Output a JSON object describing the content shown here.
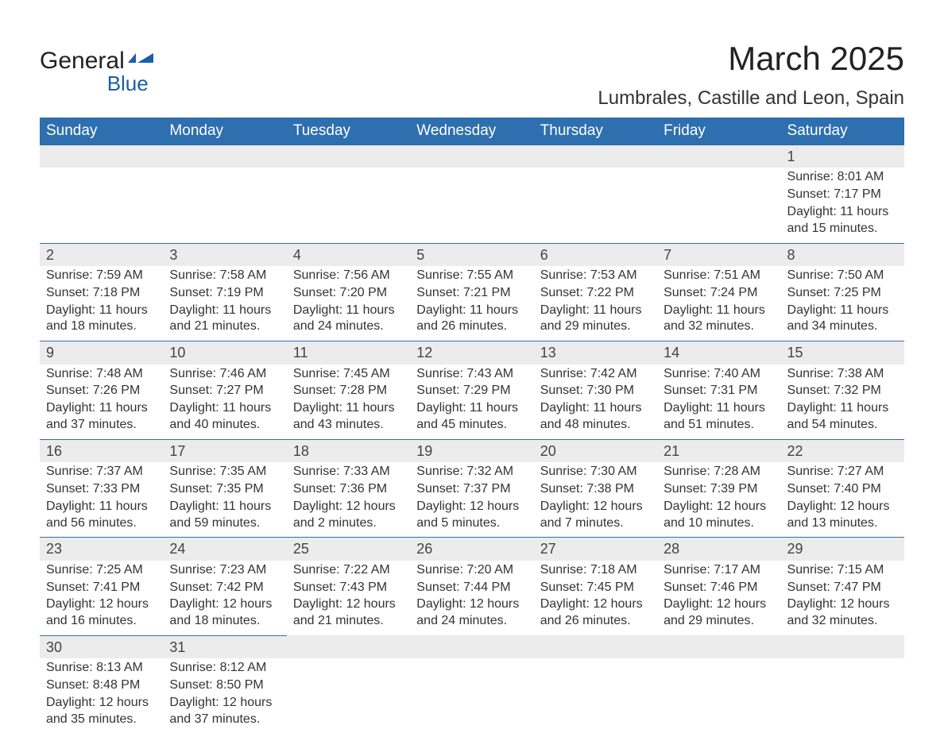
{
  "colors": {
    "header_bg": "#2e6faf",
    "header_text": "#ffffff",
    "daynum_bg": "#ececec",
    "daynum_border": "#2e6faf",
    "logo_shape": "#1a5fa8",
    "body_text": "#333333",
    "title_text": "#222222",
    "page_bg": "#ffffff"
  },
  "logo": {
    "line1": "General",
    "line2": "Blue"
  },
  "title": {
    "main": "March 2025",
    "sub": "Lumbrales, Castille and Leon, Spain"
  },
  "weekdays": [
    "Sunday",
    "Monday",
    "Tuesday",
    "Wednesday",
    "Thursday",
    "Friday",
    "Saturday"
  ],
  "field_labels": {
    "sunrise": "Sunrise:",
    "sunset": "Sunset:",
    "daylight": "Daylight:"
  },
  "grid": [
    [
      null,
      null,
      null,
      null,
      null,
      null,
      {
        "n": "1",
        "sunrise": "8:01 AM",
        "sunset": "7:17 PM",
        "daylight": "11 hours and 15 minutes."
      }
    ],
    [
      {
        "n": "2",
        "sunrise": "7:59 AM",
        "sunset": "7:18 PM",
        "daylight": "11 hours and 18 minutes."
      },
      {
        "n": "3",
        "sunrise": "7:58 AM",
        "sunset": "7:19 PM",
        "daylight": "11 hours and 21 minutes."
      },
      {
        "n": "4",
        "sunrise": "7:56 AM",
        "sunset": "7:20 PM",
        "daylight": "11 hours and 24 minutes."
      },
      {
        "n": "5",
        "sunrise": "7:55 AM",
        "sunset": "7:21 PM",
        "daylight": "11 hours and 26 minutes."
      },
      {
        "n": "6",
        "sunrise": "7:53 AM",
        "sunset": "7:22 PM",
        "daylight": "11 hours and 29 minutes."
      },
      {
        "n": "7",
        "sunrise": "7:51 AM",
        "sunset": "7:24 PM",
        "daylight": "11 hours and 32 minutes."
      },
      {
        "n": "8",
        "sunrise": "7:50 AM",
        "sunset": "7:25 PM",
        "daylight": "11 hours and 34 minutes."
      }
    ],
    [
      {
        "n": "9",
        "sunrise": "7:48 AM",
        "sunset": "7:26 PM",
        "daylight": "11 hours and 37 minutes."
      },
      {
        "n": "10",
        "sunrise": "7:46 AM",
        "sunset": "7:27 PM",
        "daylight": "11 hours and 40 minutes."
      },
      {
        "n": "11",
        "sunrise": "7:45 AM",
        "sunset": "7:28 PM",
        "daylight": "11 hours and 43 minutes."
      },
      {
        "n": "12",
        "sunrise": "7:43 AM",
        "sunset": "7:29 PM",
        "daylight": "11 hours and 45 minutes."
      },
      {
        "n": "13",
        "sunrise": "7:42 AM",
        "sunset": "7:30 PM",
        "daylight": "11 hours and 48 minutes."
      },
      {
        "n": "14",
        "sunrise": "7:40 AM",
        "sunset": "7:31 PM",
        "daylight": "11 hours and 51 minutes."
      },
      {
        "n": "15",
        "sunrise": "7:38 AM",
        "sunset": "7:32 PM",
        "daylight": "11 hours and 54 minutes."
      }
    ],
    [
      {
        "n": "16",
        "sunrise": "7:37 AM",
        "sunset": "7:33 PM",
        "daylight": "11 hours and 56 minutes."
      },
      {
        "n": "17",
        "sunrise": "7:35 AM",
        "sunset": "7:35 PM",
        "daylight": "11 hours and 59 minutes."
      },
      {
        "n": "18",
        "sunrise": "7:33 AM",
        "sunset": "7:36 PM",
        "daylight": "12 hours and 2 minutes."
      },
      {
        "n": "19",
        "sunrise": "7:32 AM",
        "sunset": "7:37 PM",
        "daylight": "12 hours and 5 minutes."
      },
      {
        "n": "20",
        "sunrise": "7:30 AM",
        "sunset": "7:38 PM",
        "daylight": "12 hours and 7 minutes."
      },
      {
        "n": "21",
        "sunrise": "7:28 AM",
        "sunset": "7:39 PM",
        "daylight": "12 hours and 10 minutes."
      },
      {
        "n": "22",
        "sunrise": "7:27 AM",
        "sunset": "7:40 PM",
        "daylight": "12 hours and 13 minutes."
      }
    ],
    [
      {
        "n": "23",
        "sunrise": "7:25 AM",
        "sunset": "7:41 PM",
        "daylight": "12 hours and 16 minutes."
      },
      {
        "n": "24",
        "sunrise": "7:23 AM",
        "sunset": "7:42 PM",
        "daylight": "12 hours and 18 minutes."
      },
      {
        "n": "25",
        "sunrise": "7:22 AM",
        "sunset": "7:43 PM",
        "daylight": "12 hours and 21 minutes."
      },
      {
        "n": "26",
        "sunrise": "7:20 AM",
        "sunset": "7:44 PM",
        "daylight": "12 hours and 24 minutes."
      },
      {
        "n": "27",
        "sunrise": "7:18 AM",
        "sunset": "7:45 PM",
        "daylight": "12 hours and 26 minutes."
      },
      {
        "n": "28",
        "sunrise": "7:17 AM",
        "sunset": "7:46 PM",
        "daylight": "12 hours and 29 minutes."
      },
      {
        "n": "29",
        "sunrise": "7:15 AM",
        "sunset": "7:47 PM",
        "daylight": "12 hours and 32 minutes."
      }
    ],
    [
      {
        "n": "30",
        "sunrise": "8:13 AM",
        "sunset": "8:48 PM",
        "daylight": "12 hours and 35 minutes."
      },
      {
        "n": "31",
        "sunrise": "8:12 AM",
        "sunset": "8:50 PM",
        "daylight": "12 hours and 37 minutes."
      },
      null,
      null,
      null,
      null,
      null
    ]
  ]
}
